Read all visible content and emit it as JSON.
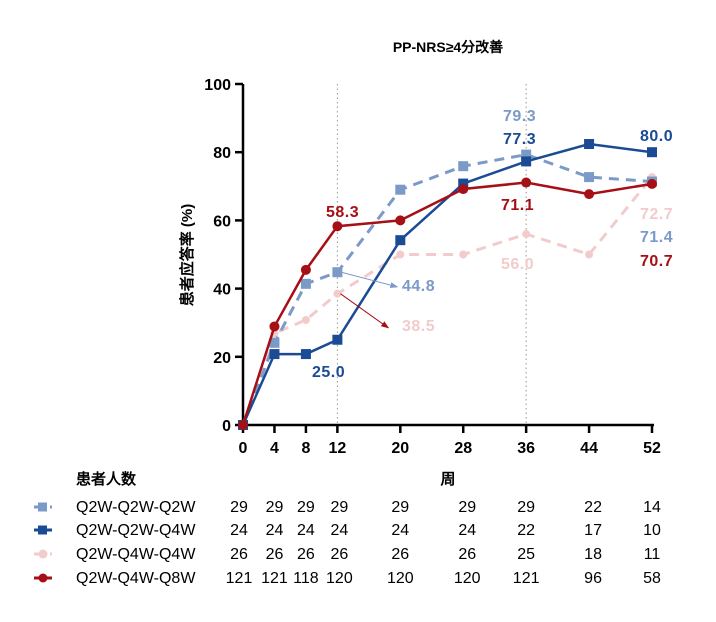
{
  "chart_data": {
    "type": "line",
    "title": "PP-NRS≥4分改善",
    "ylabel": "患者应答率 (%)",
    "xlabel": "周",
    "ylim": [
      0,
      100
    ],
    "yticks": [
      0,
      20,
      40,
      60,
      80,
      100
    ],
    "x": [
      0,
      4,
      8,
      12,
      20,
      28,
      36,
      44,
      52
    ],
    "reference_lines_x": [
      12,
      36
    ],
    "series": [
      {
        "name": "Q2W-Q2W-Q2W",
        "color": "#7b9ac8",
        "dash": true,
        "marker": "square",
        "values": [
          0,
          24.1,
          41.4,
          44.8,
          69.0,
          75.9,
          79.3,
          72.7,
          71.4
        ]
      },
      {
        "name": "Q2W-Q2W-Q4W",
        "color": "#1a4b94",
        "dash": false,
        "marker": "square",
        "values": [
          0,
          20.8,
          20.8,
          25.0,
          54.2,
          70.8,
          77.3,
          82.4,
          80.0
        ]
      },
      {
        "name": "Q2W-Q4W-Q4W",
        "color": "#f2cccc",
        "dash": true,
        "marker": "circle",
        "values": [
          0,
          26.9,
          30.8,
          38.5,
          50.0,
          50.0,
          56.0,
          50.0,
          72.7
        ]
      },
      {
        "name": "Q2W-Q4W-Q8W",
        "color": "#a50f15",
        "dash": false,
        "marker": "circle",
        "values": [
          0,
          28.9,
          45.5,
          58.3,
          60.0,
          69.2,
          71.1,
          67.7,
          70.7
        ]
      }
    ],
    "annotations": [
      {
        "text": "58.3",
        "series": 3
      },
      {
        "text": "25.0",
        "series": 1
      },
      {
        "text": "44.8",
        "series": 0
      },
      {
        "text": "38.5",
        "series": 2
      },
      {
        "text": "79.3",
        "series": 0
      },
      {
        "text": "77.3",
        "series": 1
      },
      {
        "text": "71.1",
        "series": 3
      },
      {
        "text": "56.0",
        "series": 2
      },
      {
        "text": "80.0",
        "series": 1
      },
      {
        "text": "72.7",
        "series": 2
      },
      {
        "text": "71.4",
        "series": 0
      },
      {
        "text": "70.7",
        "series": 3
      }
    ],
    "table": {
      "header": "患者人数",
      "rows": [
        [
          29,
          29,
          29,
          29,
          29,
          29,
          29,
          22,
          14
        ],
        [
          24,
          24,
          24,
          24,
          24,
          24,
          22,
          17,
          10
        ],
        [
          26,
          26,
          26,
          26,
          26,
          26,
          25,
          18,
          11
        ],
        [
          121,
          121,
          118,
          120,
          120,
          120,
          121,
          96,
          58
        ]
      ]
    }
  }
}
